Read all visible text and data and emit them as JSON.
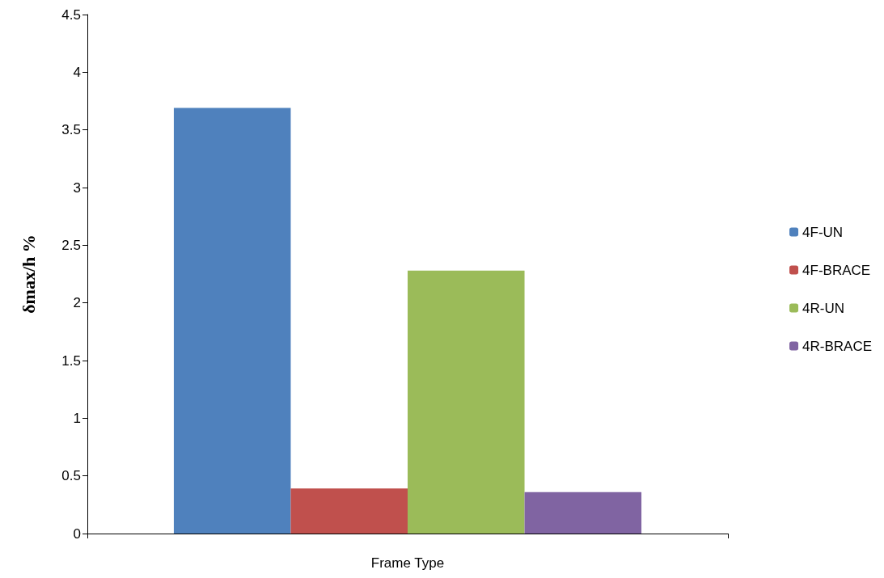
{
  "chart_data": {
    "type": "bar",
    "xlabel": "Frame Type",
    "ylabel": "δmax/h %",
    "categories": [
      null
    ],
    "series": [
      {
        "name": "4F-UN",
        "color": "#4f81bd",
        "values": [
          3.69
        ]
      },
      {
        "name": "4F-BRACE",
        "color": "#c0504d",
        "values": [
          0.39
        ]
      },
      {
        "name": "4R-UN",
        "color": "#9bbb59",
        "values": [
          2.28
        ]
      },
      {
        "name": "4R-BRACE",
        "color": "#8064a2",
        "values": [
          0.36
        ]
      }
    ],
    "ylim": [
      0,
      4.5
    ],
    "yticks": [
      0,
      0.5,
      1,
      1.5,
      2,
      2.5,
      3,
      3.5,
      4,
      4.5
    ],
    "grid": false,
    "legend": "right"
  }
}
